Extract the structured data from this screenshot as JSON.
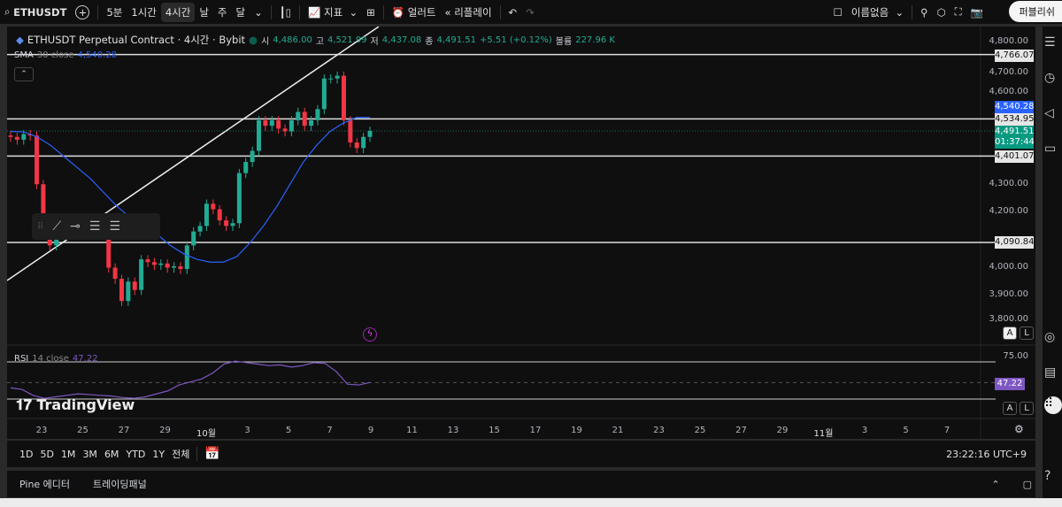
{
  "toolbar": {
    "symbol": "ETHUSDT",
    "intervals": [
      "5분",
      "1시간",
      "4시간",
      "날",
      "주",
      "달"
    ],
    "active_interval": "4시간",
    "indicators": "지표",
    "alert": "얼러트",
    "replay": "리플레이",
    "layout_name": "이름없음",
    "publish": "퍼블리쉬"
  },
  "legend": {
    "title": "ETHUSDT Perpetual Contract · 4시간 · Bybit",
    "o_label": "시",
    "o": "4,486.00",
    "h_label": "고",
    "h": "4,521.99",
    "l_label": "저",
    "l": "4,437.08",
    "c_label": "종",
    "c": "4,491.51",
    "change": "+5.51 (+0.12%)",
    "vol_label": "볼륨",
    "vol": "227.96 K",
    "sma_label": "SMA",
    "sma_params": "30 close",
    "sma_value": "4,540.28"
  },
  "rsi": {
    "label": "RSI",
    "params": "14 close",
    "value": "47.22",
    "upper": "75.00"
  },
  "price_axis": {
    "ticks": [
      "4,800.00",
      "4,700.00",
      "4,600.00",
      "4,300.00",
      "4,200.00",
      "4,000.00",
      "3,900.00",
      "3,800.00"
    ],
    "hlines": [
      "4,766.07",
      "4,534.95",
      "4,401.07",
      "4,090.84"
    ],
    "sma_tag": "4,540.28",
    "last_price": "4,491.51",
    "countdown": "01:37:44"
  },
  "time_axis": [
    "23",
    "25",
    "27",
    "29",
    "10월",
    "3",
    "5",
    "7",
    "9",
    "11",
    "13",
    "15",
    "17",
    "19",
    "21",
    "23",
    "25",
    "27",
    "29",
    "11월",
    "3",
    "5",
    "7"
  ],
  "range_buttons": [
    "1D",
    "5D",
    "1M",
    "3M",
    "6M",
    "YTD",
    "1Y",
    "전체"
  ],
  "clock": "23:22:16 UTC+9",
  "bottom_tabs": [
    "Pine 에디터",
    "트레이딩패널"
  ],
  "watermark": "TradingView",
  "colors": {
    "up": "#22ab94",
    "down": "#f23645",
    "sma": "#2962ff",
    "rsi": "#7e57c2",
    "bg": "#0f0f0f"
  },
  "chart_data": {
    "type": "candlestick",
    "ylim": [
      3800,
      4820
    ],
    "closes": [
      4470,
      4460,
      4480,
      4475,
      4300,
      4120,
      4080,
      4130,
      4160,
      4150,
      4140,
      4170,
      4150,
      4130,
      4120,
      4000,
      3960,
      3880,
      3950,
      3920,
      4030,
      4020,
      4010,
      4015,
      4000,
      4005,
      3995,
      4080,
      4130,
      4150,
      4230,
      4210,
      4170,
      4150,
      4160,
      4340,
      4380,
      4420,
      4530,
      4510,
      4530,
      4500,
      4490,
      4530,
      4560,
      4510,
      4530,
      4570,
      4680,
      4680,
      4690,
      4530,
      4450,
      4430,
      4470,
      4491.51
    ],
    "sma": [
      4490,
      4488,
      4470,
      4440,
      4400,
      4360,
      4320,
      4270,
      4220,
      4180,
      4150,
      4120,
      4080,
      4050,
      4030,
      4020,
      4020,
      4040,
      4090,
      4150,
      4220,
      4300,
      4380,
      4440,
      4490,
      4520,
      4540,
      4540
    ],
    "rsi": [
      40,
      38,
      30,
      26,
      28,
      30,
      32,
      31,
      30,
      29,
      27,
      26,
      28,
      32,
      36,
      44,
      48,
      52,
      60,
      72,
      76,
      74,
      72,
      70,
      71,
      68,
      70,
      74,
      73,
      62,
      45,
      44,
      47.22
    ],
    "hlines": [
      4766.07,
      4534.95,
      4401.07,
      4090.84
    ],
    "trendline": [
      [
        3970
      ],
      [
        4860
      ]
    ]
  }
}
